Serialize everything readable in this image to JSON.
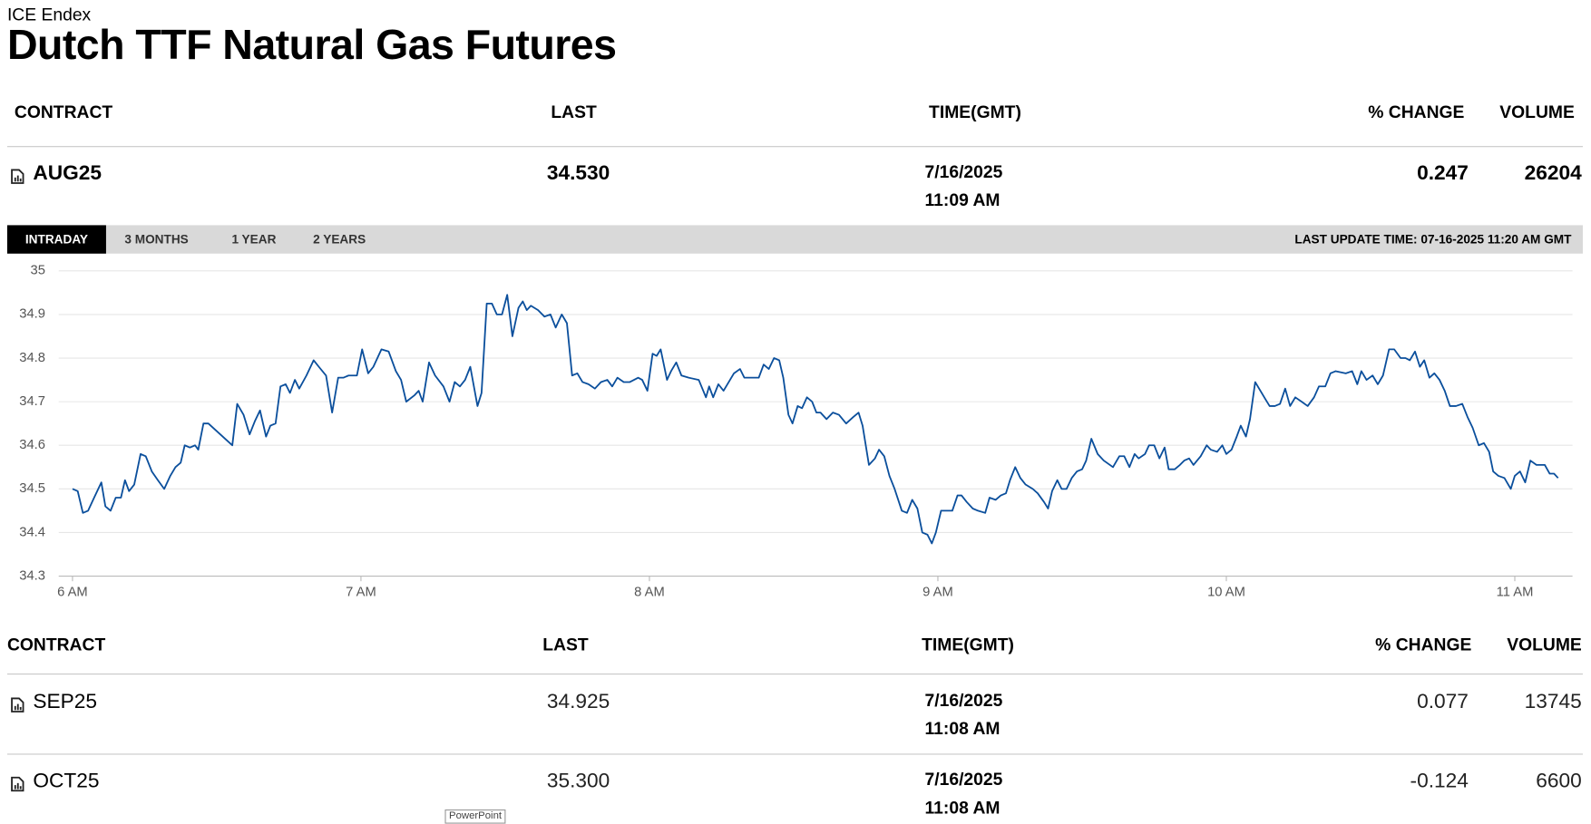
{
  "header": {
    "source": "ICE Endex",
    "title": "Dutch TTF Natural Gas Futures"
  },
  "quote_table": {
    "columns": [
      "CONTRACT",
      "LAST",
      "TIME(GMT)",
      "% CHANGE",
      "VOLUME"
    ],
    "rows": [
      {
        "contract": "AUG25",
        "last": "34.530",
        "time": [
          "7/16/2025",
          "11:09 AM"
        ],
        "change": "0.247",
        "volume": "26204"
      }
    ]
  },
  "tabs": {
    "items": [
      "INTRADAY",
      "3 MONTHS",
      "1 YEAR",
      "2 YEARS"
    ],
    "active": 0,
    "last_update": "LAST UPDATE TIME: 07-16-2025 11:20 AM GMT"
  },
  "chart_data": {
    "type": "line",
    "color": "#0b4f9c",
    "grid": true,
    "xlim": [
      5.97,
      11.2
    ],
    "ylim": [
      34.3,
      35
    ],
    "xticks": [
      {
        "value": 6,
        "label": "6 AM"
      },
      {
        "value": 7,
        "label": "7 AM"
      },
      {
        "value": 8,
        "label": "8 AM"
      },
      {
        "value": 9,
        "label": "9 AM"
      },
      {
        "value": 10,
        "label": "10 AM"
      },
      {
        "value": 11,
        "label": "11 AM"
      }
    ],
    "yticks": [
      34.3,
      34.4,
      34.5,
      34.6,
      34.7,
      34.8,
      34.9,
      35
    ],
    "x": [
      6.0,
      6.018,
      6.036,
      6.054,
      6.075,
      6.1,
      6.114,
      6.132,
      6.15,
      6.168,
      6.182,
      6.196,
      6.214,
      6.236,
      6.254,
      6.275,
      6.296,
      6.318,
      6.339,
      6.357,
      6.375,
      6.389,
      6.407,
      6.425,
      6.436,
      6.454,
      6.471,
      6.554,
      6.571,
      6.593,
      6.614,
      6.632,
      6.65,
      6.671,
      6.686,
      6.704,
      6.721,
      6.739,
      6.754,
      6.771,
      6.786,
      6.811,
      6.836,
      6.854,
      6.879,
      6.9,
      6.921,
      6.939,
      6.957,
      6.986,
      7.004,
      7.025,
      7.043,
      7.071,
      7.096,
      7.121,
      7.139,
      7.157,
      7.186,
      7.2,
      7.214,
      7.236,
      7.257,
      7.286,
      7.307,
      7.325,
      7.343,
      7.361,
      7.379,
      7.404,
      7.418,
      7.436,
      7.454,
      7.471,
      7.489,
      7.507,
      7.525,
      7.546,
      7.561,
      7.575,
      7.589,
      7.614,
      7.636,
      7.657,
      7.675,
      7.696,
      7.714,
      7.732,
      7.75,
      7.768,
      7.789,
      7.811,
      7.832,
      7.854,
      7.871,
      7.889,
      7.911,
      7.932,
      7.961,
      7.975,
      7.993,
      8.011,
      8.025,
      8.039,
      8.061,
      8.075,
      8.093,
      8.111,
      8.136,
      8.171,
      8.196,
      8.207,
      8.221,
      8.239,
      8.257,
      8.293,
      8.314,
      8.329,
      8.379,
      8.396,
      8.414,
      8.432,
      8.45,
      8.464,
      8.482,
      8.496,
      8.514,
      8.529,
      8.546,
      8.564,
      8.579,
      8.593,
      8.614,
      8.636,
      8.657,
      8.682,
      8.707,
      8.725,
      8.739,
      8.761,
      8.782,
      8.796,
      8.814,
      8.832,
      8.85,
      8.875,
      8.893,
      8.911,
      8.929,
      8.946,
      8.964,
      8.979,
      8.993,
      9.011,
      9.032,
      9.05,
      9.068,
      9.082,
      9.1,
      9.121,
      9.139,
      9.164,
      9.179,
      9.2,
      9.218,
      9.236,
      9.25,
      9.268,
      9.286,
      9.304,
      9.329,
      9.346,
      9.368,
      9.382,
      9.396,
      9.414,
      9.429,
      9.446,
      9.464,
      9.482,
      9.5,
      9.514,
      9.532,
      9.554,
      9.575,
      9.607,
      9.629,
      9.646,
      9.664,
      9.682,
      9.696,
      9.718,
      9.732,
      9.75,
      9.768,
      9.786,
      9.8,
      9.821,
      9.839,
      9.854,
      9.871,
      9.886,
      9.911,
      9.932,
      9.946,
      9.968,
      9.986,
      10.0,
      10.018,
      10.036,
      10.05,
      10.068,
      10.082,
      10.1,
      10.118,
      10.136,
      10.15,
      10.168,
      10.186,
      10.204,
      10.221,
      10.239,
      10.261,
      10.282,
      10.304,
      10.321,
      10.343,
      10.361,
      10.379,
      10.414,
      10.436,
      10.454,
      10.468,
      10.486,
      10.507,
      10.525,
      10.543,
      10.564,
      10.582,
      10.604,
      10.621,
      10.636,
      10.654,
      10.671,
      10.686,
      10.704,
      10.721,
      10.739,
      10.757,
      10.775,
      10.796,
      10.818,
      10.836,
      10.854,
      10.875,
      10.893,
      10.911,
      10.925,
      10.943,
      10.964,
      10.986,
      11.0,
      11.018,
      11.036,
      11.054,
      11.075,
      11.104,
      11.121,
      11.136,
      11.15
    ],
    "values": [
      34.5,
      34.495,
      34.445,
      34.45,
      34.48,
      34.515,
      34.46,
      34.45,
      34.48,
      34.48,
      34.52,
      34.495,
      34.51,
      34.58,
      34.575,
      34.54,
      34.52,
      34.5,
      34.53,
      34.55,
      34.56,
      34.6,
      34.595,
      34.6,
      34.59,
      34.65,
      34.65,
      34.6,
      34.695,
      34.67,
      34.625,
      34.655,
      34.68,
      34.62,
      34.645,
      34.65,
      34.735,
      34.74,
      34.72,
      34.75,
      34.73,
      34.76,
      34.795,
      34.78,
      34.76,
      34.675,
      34.755,
      34.755,
      34.76,
      34.76,
      34.82,
      34.765,
      34.78,
      34.82,
      34.815,
      34.77,
      34.75,
      34.7,
      34.715,
      34.725,
      34.7,
      34.79,
      34.76,
      34.735,
      34.7,
      34.745,
      34.735,
      34.75,
      34.78,
      34.69,
      34.72,
      34.925,
      34.925,
      34.9,
      34.9,
      34.945,
      34.85,
      34.915,
      34.93,
      34.91,
      34.92,
      34.91,
      34.895,
      34.9,
      34.87,
      34.9,
      34.88,
      34.76,
      34.765,
      34.745,
      34.74,
      34.73,
      34.745,
      34.75,
      34.735,
      34.755,
      34.745,
      34.745,
      34.755,
      34.75,
      34.725,
      34.81,
      34.805,
      34.82,
      34.75,
      34.77,
      34.79,
      34.76,
      34.755,
      34.75,
      34.71,
      34.735,
      34.71,
      34.74,
      34.725,
      34.765,
      34.775,
      34.755,
      34.755,
      34.785,
      34.775,
      34.8,
      34.795,
      34.755,
      34.67,
      34.65,
      34.69,
      34.685,
      34.71,
      34.7,
      34.675,
      34.675,
      34.66,
      34.675,
      34.67,
      34.65,
      34.665,
      34.675,
      34.645,
      34.555,
      34.57,
      34.59,
      34.575,
      34.53,
      34.5,
      34.45,
      34.445,
      34.475,
      34.455,
      34.4,
      34.395,
      34.375,
      34.4,
      34.45,
      34.45,
      34.45,
      34.485,
      34.485,
      34.47,
      34.455,
      34.45,
      34.445,
      34.48,
      34.475,
      34.485,
      34.49,
      34.52,
      34.55,
      34.525,
      34.51,
      34.5,
      34.49,
      34.47,
      34.455,
      34.495,
      34.52,
      34.5,
      34.5,
      34.525,
      34.54,
      34.545,
      34.565,
      34.615,
      34.58,
      34.565,
      34.55,
      34.575,
      34.575,
      34.55,
      34.58,
      34.57,
      34.58,
      34.6,
      34.6,
      34.57,
      34.595,
      34.545,
      34.545,
      34.555,
      34.565,
      34.57,
      34.555,
      34.575,
      34.6,
      34.59,
      34.585,
      34.6,
      34.58,
      34.59,
      34.62,
      34.645,
      34.62,
      34.66,
      34.745,
      34.725,
      34.705,
      34.69,
      34.69,
      34.695,
      34.73,
      34.69,
      34.71,
      34.7,
      34.69,
      34.71,
      34.735,
      34.735,
      34.765,
      34.77,
      34.765,
      34.77,
      34.74,
      34.77,
      34.75,
      34.76,
      34.74,
      34.76,
      34.82,
      34.82,
      34.8,
      34.8,
      34.795,
      34.815,
      34.78,
      34.795,
      34.755,
      34.765,
      34.75,
      34.725,
      34.69,
      34.69,
      34.695,
      34.665,
      34.64,
      34.6,
      34.605,
      34.585,
      34.54,
      34.53,
      34.525,
      34.5,
      34.53,
      34.54,
      34.515,
      34.565,
      34.555,
      34.555,
      34.535,
      34.535,
      34.525
    ]
  },
  "contracts_table": {
    "columns": [
      "CONTRACT",
      "LAST",
      "TIME(GMT)",
      "% CHANGE",
      "VOLUME"
    ],
    "rows": [
      {
        "contract": "SEP25",
        "last": "34.925",
        "time": [
          "7/16/2025",
          "11:08 AM"
        ],
        "change": "0.077",
        "volume": "13745"
      },
      {
        "contract": "OCT25",
        "last": "35.300",
        "time": [
          "7/16/2025",
          "11:08 AM"
        ],
        "change": "-0.124",
        "volume": "6600"
      }
    ]
  },
  "tooltip": "PowerPoint"
}
